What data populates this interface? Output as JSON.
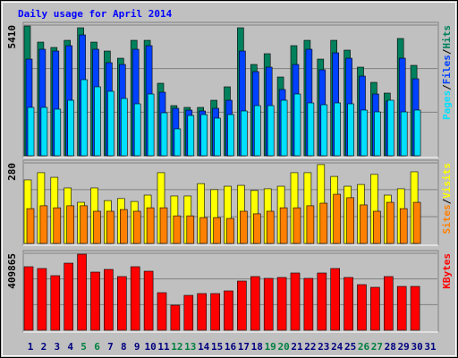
{
  "title": "Daily usage for April 2014",
  "chart_data": [
    {
      "type": "bar",
      "ylim": [
        0,
        5410
      ],
      "yticks": [
        5410
      ],
      "gridlines": [
        3607,
        1803
      ],
      "legend_separator": "/",
      "series": [
        {
          "name": "Hits",
          "color": "#00805c",
          "values": [
            5372,
            4705,
            4483,
            4779,
            5298,
            4705,
            4335,
            4038,
            4779,
            4779,
            3001,
            2075,
            2001,
            2001,
            2297,
            2853,
            5298,
            3779,
            4224,
            3260,
            4557,
            4779,
            4001,
            4779,
            4372,
            3668,
            3038,
            2594,
            4854,
            3742,
            null
          ]
        },
        {
          "name": "Files",
          "color": "#0040ff",
          "values": [
            4001,
            4409,
            4335,
            4557,
            5002,
            4409,
            3853,
            3779,
            4409,
            4557,
            2631,
            1964,
            1890,
            1853,
            1964,
            2297,
            4335,
            3483,
            3668,
            2742,
            3779,
            4409,
            3557,
            4261,
            4038,
            3297,
            2556,
            2260,
            4038,
            3186,
            null
          ]
        },
        {
          "name": "Pages",
          "color": "#00e0ff",
          "values": [
            2001,
            2001,
            1927,
            2297,
            3149,
            2853,
            2668,
            2371,
            2149,
            2556,
            1778,
            1112,
            1667,
            1704,
            1556,
            1704,
            1853,
            2075,
            2075,
            2297,
            2556,
            2186,
            2112,
            2186,
            2149,
            1890,
            1815,
            2297,
            1815,
            1890,
            null
          ]
        }
      ]
    },
    {
      "type": "bar",
      "ylim": [
        0,
        280
      ],
      "yticks": [
        280
      ],
      "gridlines": [
        187,
        93
      ],
      "legend_separator": "/",
      "series": [
        {
          "name": "Visits",
          "color": "#ffff00",
          "values": [
            221,
            246,
            230,
            193,
            143,
            193,
            149,
            156,
            146,
            168,
            246,
            165,
            165,
            208,
            187,
            199,
            202,
            184,
            190,
            199,
            246,
            246,
            274,
            233,
            199,
            205,
            240,
            168,
            190,
            249,
            null
          ]
        },
        {
          "name": "Sites",
          "color": "#ff8000",
          "values": [
            121,
            131,
            124,
            131,
            131,
            112,
            112,
            118,
            112,
            124,
            124,
            96,
            96,
            90,
            90,
            87,
            112,
            103,
            112,
            124,
            124,
            131,
            140,
            171,
            159,
            134,
            112,
            143,
            121,
            143,
            null
          ]
        }
      ]
    },
    {
      "type": "bar",
      "ylim": [
        0,
        409865
      ],
      "yticks": [
        409865
      ],
      "gridlines": [
        273243,
        136622
      ],
      "legend_separator": "/",
      "categories": [
        "1",
        "2",
        "3",
        "4",
        "5",
        "6",
        "7",
        "8",
        "9",
        "10",
        "11",
        "12",
        "13",
        "14",
        "15",
        "16",
        "17",
        "18",
        "19",
        "20",
        "21",
        "22",
        "23",
        "24",
        "25",
        "26",
        "27",
        "28",
        "29",
        "30",
        "31"
      ],
      "category_colors": [
        "#000080",
        "#000080",
        "#000080",
        "#000080",
        "#008040",
        "#008040",
        "#000080",
        "#000080",
        "#000080",
        "#000080",
        "#000080",
        "#008040",
        "#008040",
        "#000080",
        "#000080",
        "#000080",
        "#000080",
        "#000080",
        "#008040",
        "#008040",
        "#000080",
        "#000080",
        "#000080",
        "#000080",
        "#000080",
        "#008040",
        "#008040",
        "#000080",
        "#000080",
        "#000080",
        "#000080"
      ],
      "series": [
        {
          "name": "KBytes",
          "color": "#ff0000",
          "values": [
            338386,
            328854,
            290726,
            357450,
            405110,
            309790,
            324088,
            285960,
            338386,
            314556,
            200172,
            133448,
            185874,
            195406,
            195406,
            209704,
            262130,
            285960,
            276428,
            281194,
            305024,
            276428,
            305024,
            328854,
            281194,
            243066,
            228768,
            285960,
            233534,
            233534,
            null
          ]
        }
      ]
    }
  ]
}
